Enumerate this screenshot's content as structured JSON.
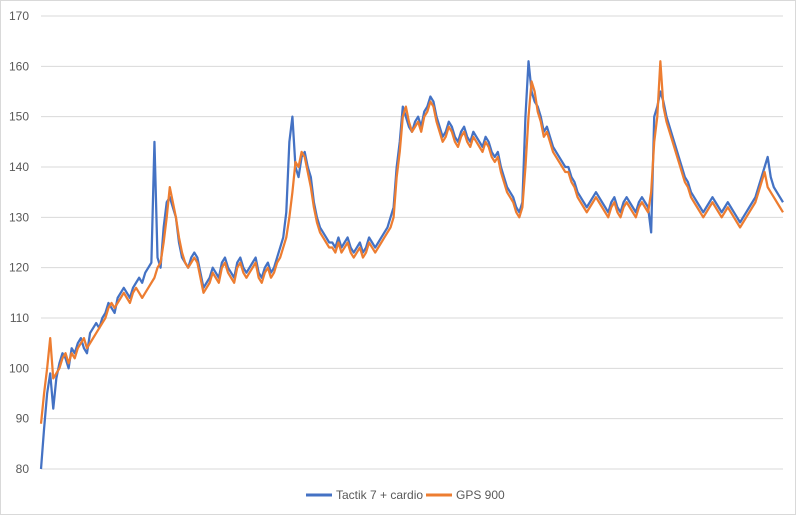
{
  "chart_data": {
    "type": "line",
    "title": "",
    "xlabel": "",
    "ylabel": "",
    "ylim": [
      80,
      170
    ],
    "yticks": [
      80,
      90,
      100,
      110,
      120,
      130,
      140,
      150,
      160,
      170
    ],
    "grid": true,
    "legend_position": "bottom",
    "series": [
      {
        "name": "Tactik 7 + cardio",
        "color": "#4472C4",
        "values": [
          80,
          88,
          95,
          99,
          92,
          98,
          101,
          103,
          102,
          100,
          104,
          103,
          105,
          106,
          104,
          103,
          107,
          108,
          109,
          108,
          110,
          111,
          113,
          112,
          111,
          114,
          115,
          116,
          115,
          114,
          116,
          117,
          118,
          117,
          119,
          120,
          121,
          145,
          122,
          120,
          128,
          133,
          134,
          132,
          130,
          125,
          122,
          121,
          120,
          122,
          123,
          122,
          119,
          116,
          117,
          118,
          120,
          119,
          118,
          121,
          122,
          120,
          119,
          118,
          121,
          122,
          120,
          119,
          120,
          121,
          122,
          119,
          118,
          120,
          121,
          119,
          120,
          122,
          124,
          126,
          131,
          145,
          150,
          140,
          138,
          142,
          143,
          140,
          138,
          133,
          130,
          128,
          127,
          126,
          125,
          125,
          124,
          126,
          124,
          125,
          126,
          124,
          123,
          124,
          125,
          123,
          124,
          126,
          125,
          124,
          125,
          126,
          127,
          128,
          130,
          132,
          140,
          145,
          152,
          150,
          148,
          147,
          149,
          150,
          148,
          151,
          152,
          154,
          153,
          150,
          148,
          146,
          147,
          149,
          148,
          146,
          145,
          147,
          148,
          146,
          145,
          147,
          146,
          145,
          144,
          146,
          145,
          143,
          142,
          143,
          140,
          138,
          136,
          135,
          134,
          132,
          131,
          133,
          150,
          161,
          155,
          153,
          152,
          150,
          147,
          148,
          146,
          144,
          143,
          142,
          141,
          140,
          140,
          138,
          137,
          135,
          134,
          133,
          132,
          133,
          134,
          135,
          134,
          133,
          132,
          131,
          133,
          134,
          132,
          131,
          133,
          134,
          133,
          132,
          131,
          133,
          134,
          133,
          132,
          127,
          150,
          152,
          155,
          153,
          150,
          148,
          146,
          144,
          142,
          140,
          138,
          137,
          135,
          134,
          133,
          132,
          131,
          132,
          133,
          134,
          133,
          132,
          131,
          132,
          133,
          132,
          131,
          130,
          129,
          130,
          131,
          132,
          133,
          134,
          136,
          138,
          140,
          142,
          138,
          136,
          135,
          134,
          133
        ]
      },
      {
        "name": "GPS 900",
        "color": "#ED7D31",
        "values": [
          89,
          95,
          100,
          106,
          98,
          99,
          100,
          102,
          103,
          101,
          103,
          102,
          104,
          105,
          106,
          104,
          105,
          106,
          107,
          108,
          109,
          110,
          112,
          113,
          112,
          113,
          114,
          115,
          114,
          113,
          115,
          116,
          115,
          114,
          115,
          116,
          117,
          118,
          120,
          121,
          125,
          130,
          136,
          133,
          130,
          126,
          123,
          121,
          120,
          121,
          122,
          121,
          118,
          115,
          116,
          117,
          119,
          118,
          117,
          120,
          121,
          119,
          118,
          117,
          120,
          121,
          119,
          118,
          119,
          120,
          121,
          118,
          117,
          119,
          120,
          118,
          119,
          121,
          122,
          124,
          126,
          130,
          135,
          141,
          140,
          143,
          142,
          139,
          136,
          132,
          129,
          127,
          126,
          125,
          124,
          124,
          123,
          125,
          123,
          124,
          125,
          123,
          122,
          123,
          124,
          122,
          123,
          125,
          124,
          123,
          124,
          125,
          126,
          127,
          128,
          130,
          138,
          143,
          150,
          152,
          149,
          147,
          148,
          149,
          147,
          150,
          151,
          153,
          152,
          149,
          147,
          145,
          146,
          148,
          147,
          145,
          144,
          146,
          147,
          145,
          144,
          146,
          145,
          144,
          143,
          145,
          144,
          142,
          141,
          142,
          139,
          137,
          135,
          134,
          133,
          131,
          130,
          132,
          140,
          150,
          157,
          155,
          151,
          149,
          146,
          147,
          145,
          143,
          142,
          141,
          140,
          139,
          139,
          137,
          136,
          134,
          133,
          132,
          131,
          132,
          133,
          134,
          133,
          132,
          131,
          130,
          132,
          133,
          131,
          130,
          132,
          133,
          132,
          131,
          130,
          132,
          133,
          132,
          131,
          135,
          145,
          150,
          161,
          152,
          149,
          147,
          145,
          143,
          141,
          139,
          137,
          136,
          134,
          133,
          132,
          131,
          130,
          131,
          132,
          133,
          132,
          131,
          130,
          131,
          132,
          131,
          130,
          129,
          128,
          129,
          130,
          131,
          132,
          133,
          135,
          137,
          139,
          136,
          135,
          134,
          133,
          132,
          131
        ]
      }
    ]
  }
}
